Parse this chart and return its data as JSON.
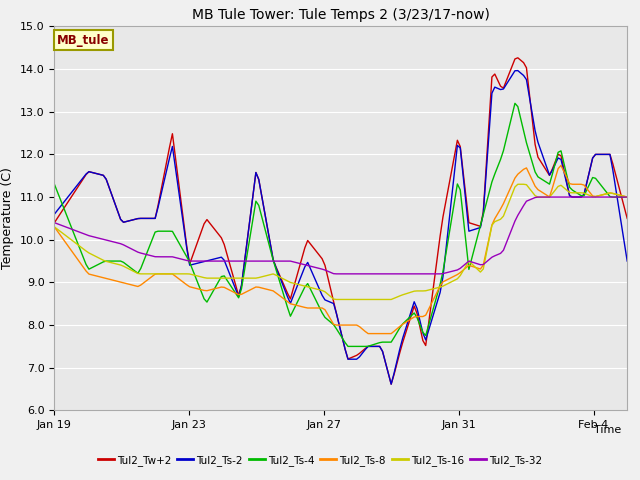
{
  "title": "MB Tule Tower: Tule Temps 2 (3/23/17-now)",
  "ylabel": "Temperature (C)",
  "ylim": [
    6.0,
    15.0
  ],
  "yticks": [
    6.0,
    7.0,
    8.0,
    9.0,
    10.0,
    11.0,
    12.0,
    13.0,
    14.0,
    15.0
  ],
  "series_colors": {
    "Tul2_Tw+2": "#cc0000",
    "Tul2_Ts-2": "#0000cc",
    "Tul2_Ts-4": "#00bb00",
    "Tul2_Ts-8": "#ff8800",
    "Tul2_Ts-16": "#cccc00",
    "Tul2_Ts-32": "#9900bb"
  },
  "xtick_labels": [
    "Jan 19",
    "Jan 23",
    "Jan 27",
    "Jan 31",
    "Feb 4"
  ],
  "xtick_positions": [
    0,
    4,
    8,
    12,
    16
  ],
  "mb_tule_box": {
    "text": "MB_tule",
    "facecolor": "#ffffcc",
    "edgecolor": "#999900",
    "textcolor": "#880000"
  },
  "legend_labels": [
    "Tul2_Tw+2",
    "Tul2_Ts-2",
    "Tul2_Ts-4",
    "Tul2_Ts-8",
    "Tul2_Ts-16",
    "Tul2_Ts-32"
  ]
}
